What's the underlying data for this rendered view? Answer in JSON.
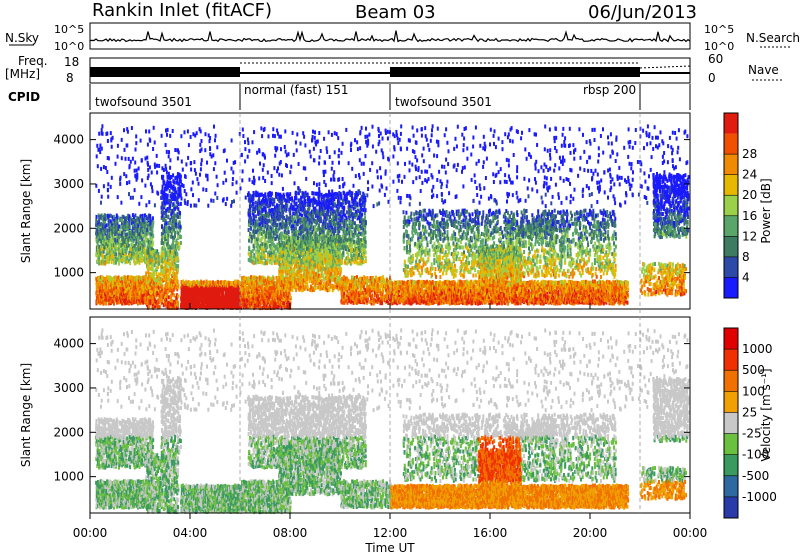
{
  "header": {
    "station": "Rankin Inlet (fitACF)",
    "beam": "Beam 03",
    "date": "06/Jun/2013"
  },
  "strip": {
    "nsky_label": "N.Sky",
    "nsky_ticks": [
      "10^5",
      "10^0"
    ],
    "nsearch_label": "N.Search",
    "nsearch_ticks": [
      "10^5",
      "10^0"
    ],
    "freq_label_1": "Freq.",
    "freq_label_2": "[MHz]",
    "freq_ticks": [
      "18",
      "8"
    ],
    "nave_label": "Nave",
    "nave_ticks": [
      "60",
      "0"
    ],
    "cpid_label": "CPID",
    "cpid_segments": [
      {
        "name": "twofsound 3501",
        "start_h": 0,
        "end_h": 6
      },
      {
        "name": "normal (fast) 151",
        "start_h": 6,
        "end_h": 12
      },
      {
        "name": "twofsound 3501",
        "start_h": 12,
        "end_h": 22
      },
      {
        "name": "rbsp 200",
        "start_h": 18,
        "end_h": 22
      },
      {
        "name": "",
        "start_h": 22,
        "end_h": 24
      }
    ]
  },
  "chart_data": [
    {
      "type": "heatmap",
      "panel": "power",
      "xlabel": "",
      "ylabel": "Slant Range [km]",
      "xlim": [
        0,
        24
      ],
      "ylim": [
        180,
        4600
      ],
      "y_ticks": [
        1000,
        2000,
        3000,
        4000
      ],
      "colorbar_label": "Power [dB]",
      "colorbar_ticks": [
        "4",
        "8",
        "12",
        "16",
        "20",
        "24",
        "28"
      ],
      "colors": [
        "#1a1aff",
        "#2e4aa8",
        "#3e7c62",
        "#5aa66a",
        "#9bd04a",
        "#e6b800",
        "#f08a00",
        "#f05000",
        "#e01b10"
      ]
    },
    {
      "type": "heatmap",
      "panel": "velocity",
      "xlabel": "Time UT",
      "ylabel": "Slant Range [km]",
      "xlim": [
        0,
        24
      ],
      "ylim": [
        180,
        4600
      ],
      "y_ticks": [
        1000,
        2000,
        3000,
        4000
      ],
      "x_ticks": [
        "00:00",
        "04:00",
        "08:00",
        "12:00",
        "16:00",
        "20:00",
        "00:00"
      ],
      "colorbar_label": "Velocity [m s⁻¹]",
      "colorbar_ticks": [
        "1000",
        "500",
        "100",
        "25",
        "-25",
        "-100",
        "-500",
        "-1000"
      ],
      "colors": [
        "#2a3aa8",
        "#2e6aa0",
        "#3a9a60",
        "#6cc040",
        "#c8c8c8",
        "#f0a000",
        "#f07000",
        "#f03000",
        "#e00000"
      ]
    }
  ]
}
